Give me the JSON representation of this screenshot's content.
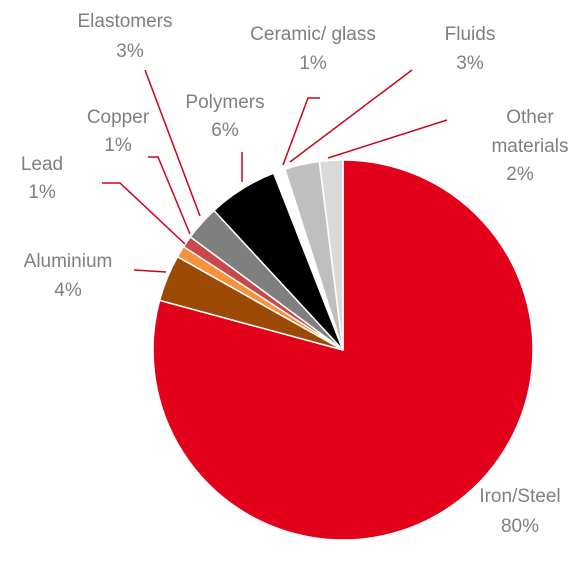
{
  "chart_data": {
    "type": "pie",
    "categories": [
      "Iron/Steel",
      "Aluminium",
      "Lead",
      "Copper",
      "Elastomers",
      "Polymers",
      "Ceramic/ glass",
      "Fluids",
      "Other materials"
    ],
    "values": [
      80,
      4,
      1,
      1,
      3,
      6,
      1,
      3,
      2
    ],
    "value_labels": [
      "80%",
      "4%",
      "1%",
      "1%",
      "3%",
      "6%",
      "1%",
      "3%",
      "2%"
    ],
    "colors": [
      "#e2001a",
      "#9c4a06",
      "#f7923a",
      "#c9484a",
      "#7f7f7f",
      "#000000",
      "#ffffff",
      "#bfbfbf",
      "#d9d9d9"
    ]
  }
}
